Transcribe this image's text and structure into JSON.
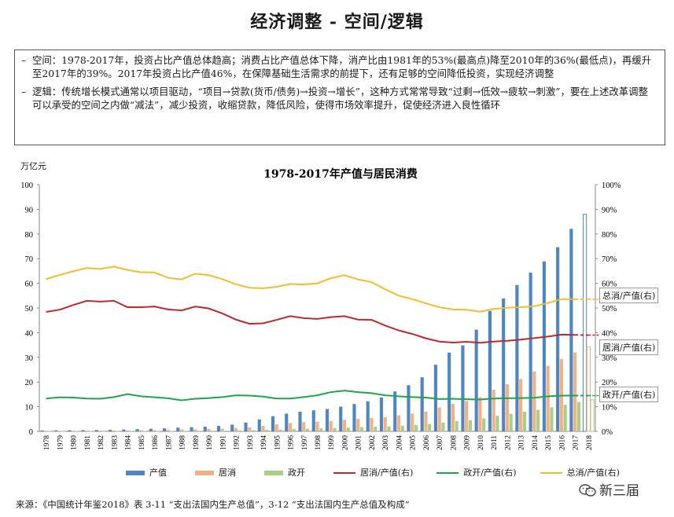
{
  "page": {
    "title": "经济调整 - 空间/逻辑",
    "bullets": [
      {
        "dash": "–",
        "text": "空间：1978-2017年，投资占比产值总体趋高；消费占比产值总体下降，消产比由1981年的53%(最高点)降至2010年的36%(最低点)，再缓升至2017年的39%。2017年投资占比产值46%，在保障基础生活需求的前提下，还有足够的空间降低投资，实现经济调整"
      },
      {
        "dash": "–",
        "text": "逻辑：传统增长模式通常以项目驱动，“项目→贷款(货币/债务)→投资→增长”，这种方式常常导致“过剩→低效→疲软→刺激”，要在上述改革调整可以承受的空间之内做“减法”，减少投资，收缩贷款，降低风险，使得市场效率提升，促使经济进入良性循环"
      }
    ],
    "unit": "万亿元",
    "source": "来源：《中国统计年鉴2018》表 3-11 “支出法国内生产总值”，3-12 “支出法国内生产总值及构成”",
    "brand": "新三届"
  },
  "colors": {
    "output": "#4e86c2",
    "consume": "#f0b184",
    "govt": "#a8cf86",
    "consume_ratio": "#c0282d",
    "govt_ratio": "#1ea64a",
    "total_ratio": "#f2bd2b"
  },
  "chart_data": {
    "type": "bar",
    "title": "1978-2017年产值与居民消费",
    "categories": [
      "1978",
      "1979",
      "1980",
      "1981",
      "1982",
      "1983",
      "1984",
      "1985",
      "1986",
      "1987",
      "1988",
      "1989",
      "1990",
      "1991",
      "1992",
      "1993",
      "1994",
      "1995",
      "1996",
      "1997",
      "1998",
      "1999",
      "2000",
      "2001",
      "2002",
      "2003",
      "2004",
      "2005",
      "2006",
      "2007",
      "2008",
      "2009",
      "2010",
      "2011",
      "2012",
      "2013",
      "2014",
      "2015",
      "2016",
      "2017",
      "2018"
    ],
    "y_left": {
      "min": 0,
      "max": 100,
      "step": 10,
      "label": "万亿元",
      "ticks": [
        "0",
        "10",
        "20",
        "30",
        "40",
        "50",
        "60",
        "70",
        "80",
        "90",
        "100"
      ]
    },
    "y_right": {
      "min": 0,
      "max": 100,
      "step": 10,
      "ticks": [
        "0%",
        "10%",
        "20%",
        "30%",
        "40%",
        "50%",
        "60%",
        "70%",
        "80%",
        "90%",
        "100%"
      ]
    },
    "bar_series": [
      {
        "name": "产值",
        "color_key": "output",
        "values": [
          0.37,
          0.41,
          0.46,
          0.49,
          0.54,
          0.6,
          0.73,
          0.91,
          1.04,
          1.22,
          1.52,
          1.71,
          1.89,
          2.2,
          2.72,
          3.57,
          4.86,
          6.13,
          7.18,
          7.97,
          8.52,
          9.06,
          10.03,
          11.09,
          12.17,
          13.74,
          16.18,
          18.73,
          21.94,
          27.0,
          31.92,
          34.85,
          41.21,
          48.79,
          53.86,
          59.3,
          64.36,
          68.89,
          74.64,
          82.08,
          88.0
        ]
      },
      {
        "name": "居消",
        "color_key": "consume",
        "values": [
          0.18,
          0.2,
          0.23,
          0.26,
          0.28,
          0.32,
          0.37,
          0.46,
          0.52,
          0.6,
          0.77,
          0.87,
          0.94,
          1.06,
          1.26,
          1.6,
          2.18,
          2.83,
          3.36,
          3.71,
          3.92,
          4.19,
          4.69,
          5.03,
          5.45,
          5.77,
          6.51,
          7.2,
          8.05,
          9.66,
          11.13,
          12.31,
          13.82,
          16.9,
          19.06,
          21.22,
          24.28,
          26.52,
          29.28,
          31.96,
          34.3
        ]
      },
      {
        "name": "政开",
        "color_key": "govt",
        "values": [
          0.05,
          0.06,
          0.07,
          0.07,
          0.07,
          0.08,
          0.11,
          0.13,
          0.14,
          0.16,
          0.19,
          0.22,
          0.25,
          0.29,
          0.35,
          0.45,
          0.61,
          0.73,
          0.91,
          1.07,
          1.19,
          1.35,
          1.57,
          1.73,
          1.89,
          2.0,
          2.3,
          2.6,
          3.0,
          3.5,
          4.2,
          4.5,
          5.3,
          6.3,
          7.1,
          8.0,
          8.7,
          9.8,
          10.8,
          11.9,
          12.8
        ]
      }
    ],
    "line_series": [
      {
        "name": "居消/产值(右)",
        "color_key": "consume_ratio",
        "end_label": "居消/产值(右)",
        "values": [
          48.4,
          49.3,
          51.2,
          52.9,
          52.6,
          52.9,
          50.3,
          50.3,
          50.6,
          49.4,
          49.0,
          50.6,
          49.8,
          47.8,
          45.3,
          43.6,
          43.8,
          45.2,
          46.7,
          45.9,
          45.6,
          46.3,
          46.7,
          45.3,
          45.2,
          42.9,
          40.9,
          39.5,
          37.7,
          36.4,
          36.0,
          36.3,
          35.9,
          36.4,
          36.7,
          37.2,
          37.8,
          38.4,
          39.2,
          39.1,
          39.0
        ]
      },
      {
        "name": "政开/产值(右)",
        "color_key": "govt_ratio",
        "end_label": "政开/产值(右)",
        "values": [
          13.3,
          13.8,
          13.7,
          13.3,
          13.2,
          13.9,
          15.1,
          14.2,
          13.8,
          13.4,
          12.6,
          13.2,
          13.5,
          13.9,
          14.6,
          14.5,
          14.1,
          13.3,
          13.3,
          13.9,
          14.6,
          15.9,
          16.5,
          15.9,
          15.5,
          14.6,
          14.2,
          13.9,
          13.7,
          13.1,
          13.2,
          13.0,
          12.9,
          13.3,
          13.4,
          13.5,
          13.6,
          14.2,
          14.5,
          14.5,
          14.5
        ]
      },
      {
        "name": "总消/产值(右)",
        "color_key": "total_ratio",
        "end_label": "总消/产值(右)",
        "values": [
          61.7,
          63.4,
          64.9,
          66.2,
          65.8,
          66.8,
          65.4,
          64.5,
          64.4,
          62.2,
          61.6,
          63.9,
          63.3,
          61.7,
          59.6,
          58.2,
          58.0,
          58.6,
          59.7,
          59.5,
          60.0,
          62.1,
          63.3,
          61.6,
          60.5,
          57.6,
          55.0,
          53.6,
          51.9,
          50.3,
          49.4,
          49.3,
          48.5,
          49.6,
          50.1,
          50.3,
          50.7,
          52.0,
          53.6,
          53.6,
          53.6
        ]
      }
    ],
    "legend": [
      "产值",
      "居消",
      "政开",
      "居消/产值(右)",
      "政开/产值(右)",
      "总消/产值(右)"
    ],
    "legend_position": "bottom",
    "grid": true
  }
}
